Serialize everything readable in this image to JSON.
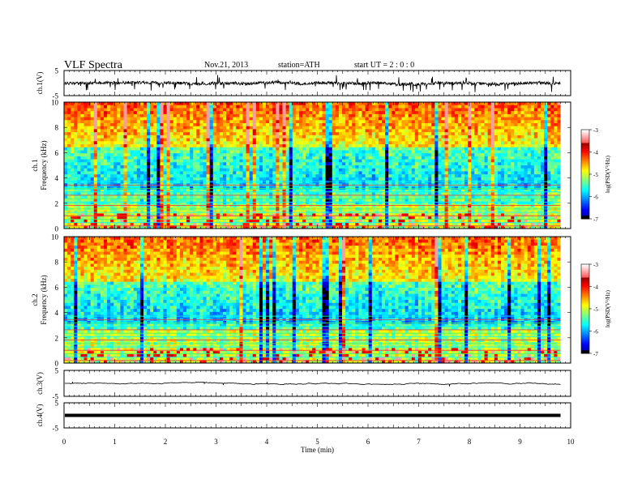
{
  "header": {
    "title": "VLF Spectra",
    "date": "Nov.21, 2013",
    "station": "station=ATH",
    "start": "start  UT  =   2  : 0  : 0"
  },
  "chart_data": [
    {
      "type": "line",
      "id": "ch1",
      "ylabel": "ch.1(V)",
      "ylim": [
        -5,
        5
      ],
      "ytick_labels": [
        "5",
        "-5"
      ],
      "x_range_min": [
        0,
        9.8
      ],
      "description_level": "noisy waveform around about 0 V with spikes",
      "color": "#000000"
    },
    {
      "type": "heatmap",
      "id": "spec1",
      "ylabel": "ch.1\nFrequency (kHz)",
      "ylabel_lines": [
        "ch.1",
        "Frequency  (kHz)"
      ],
      "ylim": [
        0,
        10
      ],
      "ytick_labels": [
        "0",
        "2",
        "4",
        "6",
        "8",
        "10"
      ],
      "colorbar": {
        "label": "log(PSD(V²/Hz)",
        "range": [
          -7,
          -3
        ],
        "tick_labels": [
          "-3",
          "-4",
          "-5",
          "-6",
          "-7"
        ]
      }
    },
    {
      "type": "heatmap",
      "id": "spec2",
      "ylabel_lines": [
        "ch.2",
        "Frequency  (kHz)"
      ],
      "ylim": [
        0,
        10
      ],
      "ytick_labels": [
        "0",
        "2",
        "4",
        "6",
        "8",
        "10"
      ],
      "colorbar": {
        "label": "log(PSD(V²/Hz)",
        "range": [
          -7,
          -3
        ],
        "tick_labels": [
          "-3",
          "-4",
          "-5",
          "-6",
          "-7"
        ]
      }
    },
    {
      "type": "line",
      "id": "ch3",
      "ylabel": "ch.3(V)",
      "ylim": [
        -5,
        5
      ],
      "ytick_labels": [
        "5",
        "-5"
      ],
      "color": "#000000"
    },
    {
      "type": "line",
      "id": "ch4",
      "ylabel": "ch.4(V)",
      "ylim": [
        -5,
        5
      ],
      "ytick_labels": [
        "5",
        "-5"
      ],
      "color": "#000000"
    }
  ],
  "xaxis": {
    "label": "Time  (min)",
    "range": [
      0,
      10
    ],
    "tick_labels": [
      "0",
      "1",
      "2",
      "3",
      "4",
      "5",
      "6",
      "7",
      "8",
      "9",
      "10"
    ],
    "data_end": 9.8
  }
}
